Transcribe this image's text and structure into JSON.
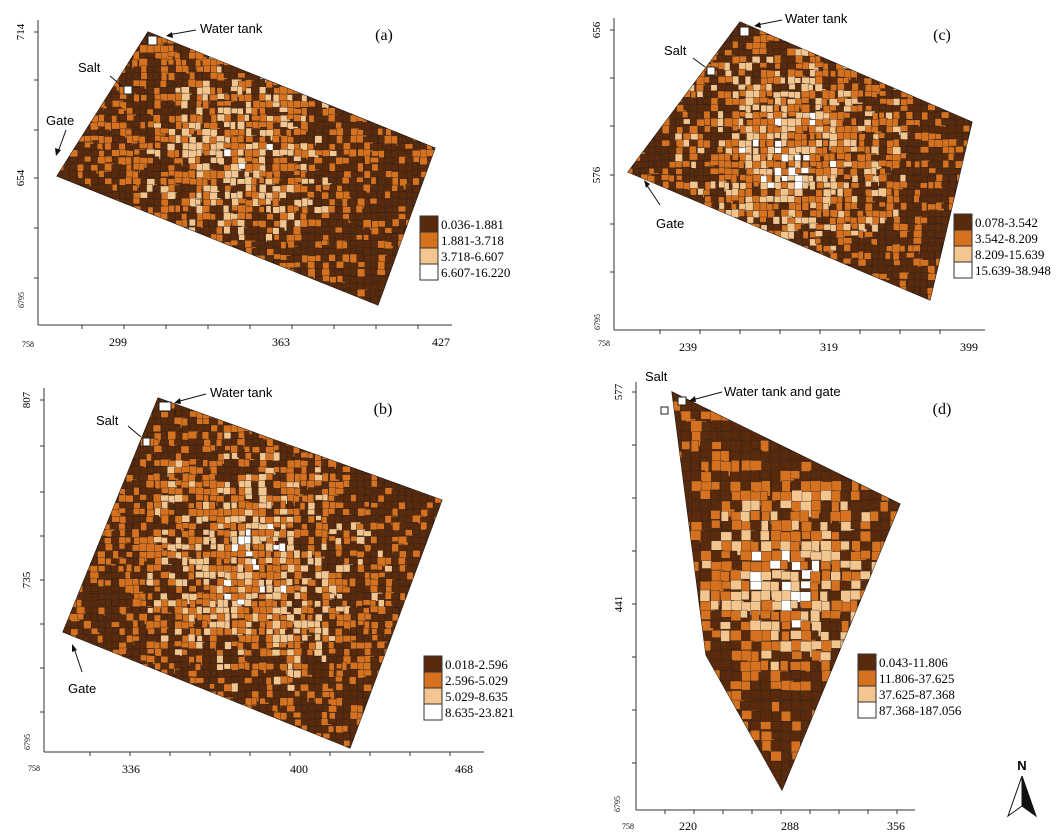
{
  "colors": {
    "class1": "#5a2a0c",
    "class2": "#d5711f",
    "class3": "#f3c58f",
    "class4": "#ffffff",
    "cell_edge": "#222222",
    "axis": "#333333"
  },
  "panels": [
    {
      "id": "a",
      "label": "(a)",
      "y_top": "714",
      "y_mid": "654",
      "y_bottom": "6795",
      "x_origin": "758",
      "x_ticks": [
        "299",
        "363",
        "427"
      ],
      "legend": [
        "0.036-1.881",
        "1.881-3.718",
        "3.718-6.607",
        "6.607-16.220"
      ],
      "markers": {
        "water_tank": "Water tank",
        "salt": "Salt",
        "gate": "Gate"
      }
    },
    {
      "id": "c",
      "label": "(c)",
      "y_top": "656",
      "y_mid": "576",
      "y_bottom": "6795",
      "x_origin": "758",
      "x_ticks": [
        "239",
        "319",
        "399"
      ],
      "legend": [
        "0.078-3.542",
        "3.542-8.209",
        "8.209-15.639",
        "15.639-38.948"
      ],
      "markers": {
        "water_tank": "Water tank",
        "salt": "Salt",
        "gate": "Gate"
      }
    },
    {
      "id": "b",
      "label": "(b)",
      "y_top": "807",
      "y_mid": "735",
      "y_bottom": "6795",
      "x_origin": "758",
      "x_ticks": [
        "336",
        "400",
        "468"
      ],
      "legend": [
        "0.018-2.596",
        "2.596-5.029",
        "5.029-8.635",
        "8.635-23.821"
      ],
      "markers": {
        "water_tank": "Water tank",
        "salt": "Salt",
        "gate": "Gate"
      }
    },
    {
      "id": "d",
      "label": "(d)",
      "y_top": "577",
      "y_mid": "441",
      "y_bottom": "6795",
      "x_origin": "758",
      "x_ticks": [
        "220",
        "288",
        "356"
      ],
      "legend": [
        "0.043-11.806",
        "11.806-37.625",
        "37.625-87.368",
        "87.368-187.056"
      ],
      "markers": {
        "water_tank": "Water tank and gate",
        "salt": "Salt"
      }
    }
  ],
  "north_arrow": "N"
}
